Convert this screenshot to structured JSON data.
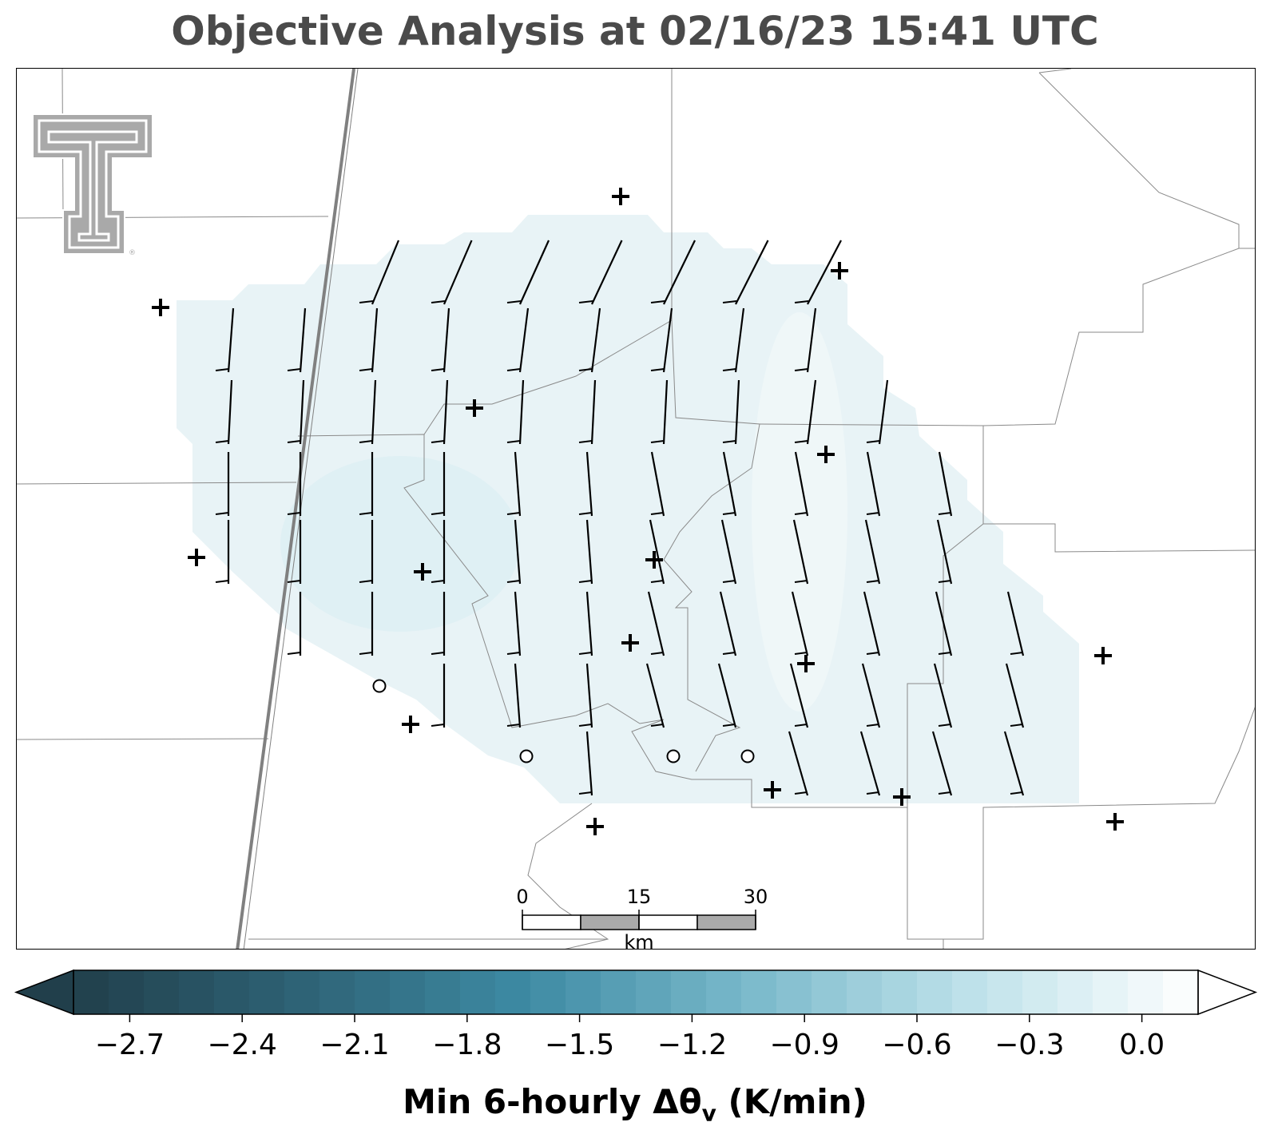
{
  "title": "Objective Analysis at 02/16/23 15:41 UTC",
  "colorbar": {
    "label": "Min 6-hourly Δθ",
    "label_sub": "v",
    "label_unit": " (K/min)",
    "ticks": [
      "−2.7",
      "−2.4",
      "−2.1",
      "−1.8",
      "−1.5",
      "−1.2",
      "−0.9",
      "−0.6",
      "−0.3",
      "0.0"
    ],
    "tick_values": [
      -2.7,
      -2.4,
      -2.1,
      -1.8,
      -1.5,
      -1.2,
      -0.9,
      -0.6,
      -0.3,
      0.0
    ],
    "range": [
      -2.85,
      0.15
    ],
    "extend": "both",
    "colormap_stops": [
      "#213f4b",
      "#2e6275",
      "#3d8aa3",
      "#7ab9cb",
      "#bfe2ea",
      "#ffffff"
    ]
  },
  "scale_bar": {
    "labels": [
      "0",
      "15",
      "30"
    ],
    "unit": "km"
  },
  "logo": {
    "name": "Texas Tech Double T",
    "mark": "®"
  },
  "colors": {
    "field_fill": "#e8f3f6",
    "field_fill_darker": "#dceef3",
    "county_lines": "#8a8a8a",
    "state_line": "#808080",
    "barb": "#000000",
    "station_marker": "#000000"
  },
  "map_layers": {
    "wind_barbs": "black, knots (short barb = 5 kt)",
    "stations_plus": "station locations",
    "stations_circle": "calm stations"
  }
}
